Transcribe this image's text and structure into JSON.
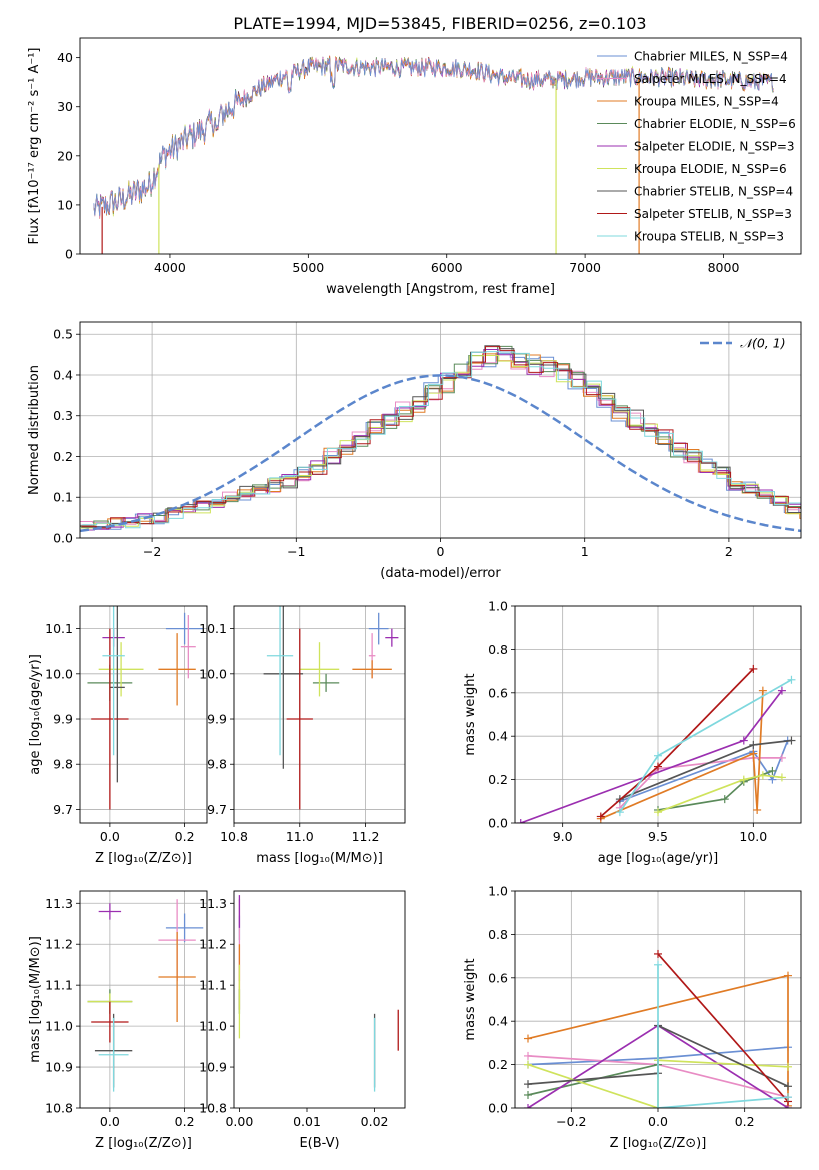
{
  "title": "PLATE=1994, MJD=53845, FIBERID=0256, z=0.103",
  "colors": {
    "Chabrier MILES": "#6a8fd3",
    "Salpeter MILES": "#e88cc4",
    "Kroupa MILES": "#e07b25",
    "Chabrier ELODIE": "#5a8a5a",
    "Salpeter ELODIE": "#9b2fb0",
    "Kroupa ELODIE": "#cfe35c",
    "Chabrier STELIB": "#555555",
    "Salpeter STELIB": "#b01818",
    "Kroupa STELIB": "#7fd8de",
    "normal": "#5b86cc"
  },
  "chart_data": [
    {
      "id": "spectrum",
      "type": "line",
      "xlabel": "wavelength [Angstrom, rest frame]",
      "ylabel": "Flux [fλ10⁻¹⁷ erg cm⁻² s⁻¹ A⁻¹]",
      "xlim": [
        3350,
        8560
      ],
      "ylim": [
        0,
        44
      ],
      "xticks": [
        4000,
        5000,
        6000,
        7000,
        8000
      ],
      "yticks": [
        0,
        10,
        20,
        30,
        40
      ],
      "grid": false,
      "legend_position": "right",
      "legend": [
        {
          "model": "Chabrier MILES",
          "label": "Chabrier MILES, N_SSP=4"
        },
        {
          "model": "Salpeter MILES",
          "label": "Salpeter MILES, N_SSP=4"
        },
        {
          "model": "Kroupa MILES",
          "label": "Kroupa MILES, N_SSP=4"
        },
        {
          "model": "Chabrier ELODIE",
          "label": "Chabrier ELODIE, N_SSP=6"
        },
        {
          "model": "Salpeter ELODIE",
          "label": "Salpeter ELODIE, N_SSP=3"
        },
        {
          "model": "Kroupa ELODIE",
          "label": "Kroupa ELODIE, N_SSP=6"
        },
        {
          "model": "Chabrier STELIB",
          "label": "Chabrier STELIB, N_SSP=4"
        },
        {
          "model": "Salpeter STELIB",
          "label": "Salpeter STELIB, N_SSP=3"
        },
        {
          "model": "Kroupa STELIB",
          "label": "Kroupa STELIB, N_SSP=3"
        }
      ],
      "continuum": {
        "x": [
          3450,
          3650,
          3850,
          3950,
          4050,
          4150,
          4250,
          4400,
          4600,
          4800,
          5000,
          5200,
          5400,
          5600,
          5800,
          6000,
          6200,
          6400,
          6600,
          6800,
          7000,
          7200,
          7400,
          7600,
          7800,
          8000,
          8200,
          8350
        ],
        "y": [
          9,
          11,
          14,
          20,
          22,
          24,
          25.5,
          29,
          33,
          36,
          38,
          38.5,
          38,
          38,
          38,
          38,
          37.5,
          36,
          35.5,
          35.5,
          36,
          36,
          36,
          36,
          35.5,
          35.5,
          35,
          35
        ]
      },
      "dropouts": [
        {
          "x": 3510,
          "y_min": 0,
          "model": "Salpeter STELIB"
        },
        {
          "x": 3920,
          "y_min": 0,
          "model": "Kroupa ELODIE"
        },
        {
          "x": 6790,
          "y_min": 0,
          "model": "Kroupa ELODIE"
        },
        {
          "x": 7390,
          "y_min": 0,
          "model": "Kroupa MILES"
        }
      ]
    },
    {
      "id": "residuals",
      "type": "bar",
      "xlabel": "(data-model)/error",
      "ylabel": "Normed distribution",
      "xlim": [
        -2.5,
        2.5
      ],
      "ylim": [
        0,
        0.53
      ],
      "xticks": [
        -2,
        -1,
        0,
        1,
        2
      ],
      "yticks": [
        0.0,
        0.1,
        0.2,
        0.3,
        0.4,
        0.5
      ],
      "grid": true,
      "legend_position": "top-right",
      "legend": [
        "𝒩(0, 1)"
      ],
      "bin_edges_from": -2.5,
      "bin_width": 0.1,
      "envelope": [
        0.028,
        0.03,
        0.035,
        0.04,
        0.045,
        0.05,
        0.058,
        0.066,
        0.075,
        0.085,
        0.1,
        0.11,
        0.12,
        0.13,
        0.14,
        0.155,
        0.175,
        0.2,
        0.22,
        0.245,
        0.27,
        0.29,
        0.31,
        0.33,
        0.36,
        0.38,
        0.41,
        0.43,
        0.445,
        0.455,
        0.44,
        0.43,
        0.42,
        0.4,
        0.385,
        0.365,
        0.34,
        0.31,
        0.29,
        0.265,
        0.245,
        0.22,
        0.2,
        0.175,
        0.155,
        0.135,
        0.12,
        0.105,
        0.09,
        0.075,
        0.06,
        0.05,
        0.042,
        0.035,
        0.03,
        0.026,
        0.022,
        0.02,
        0.018,
        0.015,
        0.012,
        0.01,
        0.01,
        0.01,
        0.01,
        0.01,
        0.01,
        0.01,
        0.01,
        0.01
      ],
      "spread": 0.035
    },
    {
      "id": "age-vs-Z",
      "type": "scatter",
      "xlabel": "Z [log₁₀(Z/Z⊙)]",
      "ylabel": "age  [log₁₀(age/yr)]",
      "xlim": [
        -0.08,
        0.26
      ],
      "ylim": [
        9.67,
        10.15
      ],
      "xticks": [
        0.0,
        0.2
      ],
      "yticks": [
        9.7,
        9.8,
        9.9,
        10.0,
        10.1
      ],
      "grid": true,
      "points": [
        {
          "model": "Chabrier MILES",
          "x": 0.2,
          "y": 10.1,
          "xerr": 0.05,
          "yerr": 0.035
        },
        {
          "model": "Salpeter MILES",
          "x": 0.21,
          "y": 10.06,
          "xerr": 0.02,
          "yerr": 0.07
        },
        {
          "model": "Kroupa MILES",
          "x": 0.18,
          "y": 10.01,
          "xerr": 0.05,
          "yerr": 0.08
        },
        {
          "model": "Chabrier ELODIE",
          "x": 0.0,
          "y": 9.98,
          "xerr": 0.06,
          "yerr": 0.04
        },
        {
          "model": "Salpeter ELODIE",
          "x": 0.01,
          "y": 10.08,
          "xerr": 0.03,
          "yerr": 0.02
        },
        {
          "model": "Kroupa ELODIE",
          "x": 0.03,
          "y": 10.01,
          "xerr": 0.06,
          "yerr": 0.06
        },
        {
          "model": "Chabrier STELIB",
          "x": 0.02,
          "y": 9.97,
          "xerr": 0.02,
          "yerr": 0.21
        },
        {
          "model": "Salpeter STELIB",
          "x": 0.0,
          "y": 9.9,
          "xerr": 0.05,
          "yerr": 0.2
        },
        {
          "model": "Kroupa STELIB",
          "x": 0.01,
          "y": 10.04,
          "xerr": 0.03,
          "yerr": 0.22
        }
      ]
    },
    {
      "id": "age-vs-mass",
      "type": "scatter",
      "xlabel": "mass [log₁₀(M/M⊙)]",
      "ylabel": "",
      "xlim": [
        10.8,
        11.32
      ],
      "ylim": [
        9.67,
        10.15
      ],
      "xticks": [
        10.8,
        11.0,
        11.2
      ],
      "yticks": [
        9.7,
        9.8,
        9.9,
        10.0,
        10.1
      ],
      "grid": true,
      "points": [
        {
          "model": "Chabrier MILES",
          "x": 11.24,
          "y": 10.1,
          "xerr": 0.03,
          "yerr": 0.035
        },
        {
          "model": "Salpeter MILES",
          "x": 11.22,
          "y": 10.04,
          "xerr": 0.01,
          "yerr": 0.05
        },
        {
          "model": "Kroupa MILES",
          "x": 11.22,
          "y": 10.01,
          "xerr": 0.06,
          "yerr": 0.02
        },
        {
          "model": "Chabrier ELODIE",
          "x": 11.08,
          "y": 9.98,
          "xerr": 0.04,
          "yerr": 0.02
        },
        {
          "model": "Salpeter ELODIE",
          "x": 11.28,
          "y": 10.08,
          "xerr": 0.02,
          "yerr": 0.02
        },
        {
          "model": "Kroupa ELODIE",
          "x": 11.06,
          "y": 10.01,
          "xerr": 0.06,
          "yerr": 0.06
        },
        {
          "model": "Chabrier STELIB",
          "x": 10.95,
          "y": 10.0,
          "xerr": 0.06,
          "yerr": 0.21
        },
        {
          "model": "Salpeter STELIB",
          "x": 11.0,
          "y": 9.9,
          "xerr": 0.04,
          "yerr": 0.2
        },
        {
          "model": "Kroupa STELIB",
          "x": 10.94,
          "y": 10.04,
          "xerr": 0.04,
          "yerr": 0.22
        }
      ]
    },
    {
      "id": "mass-weight-vs-age",
      "type": "line",
      "xlabel": "age  [log₁₀(age/yr)]",
      "ylabel": "mass weight",
      "xlim": [
        8.75,
        10.25
      ],
      "ylim": [
        0,
        1.0
      ],
      "xticks": [
        9.0,
        9.5,
        10.0
      ],
      "yticks": [
        0.0,
        0.2,
        0.4,
        0.6,
        0.8,
        1.0
      ],
      "grid": true,
      "series": [
        {
          "model": "Chabrier MILES",
          "x": [
            9.3,
            10.0,
            10.1,
            10.18
          ],
          "y": [
            0.1,
            0.33,
            0.2,
            0.38
          ]
        },
        {
          "model": "Salpeter MILES",
          "x": [
            9.3,
            9.5,
            10.0,
            10.15
          ],
          "y": [
            0.07,
            0.25,
            0.3,
            0.3
          ]
        },
        {
          "model": "Kroupa MILES",
          "x": [
            9.2,
            10.0,
            10.02,
            10.05
          ],
          "y": [
            0.02,
            0.32,
            0.06,
            0.61
          ]
        },
        {
          "model": "Chabrier ELODIE",
          "x": [
            9.5,
            9.85,
            9.95,
            10.1
          ],
          "y": [
            0.06,
            0.11,
            0.19,
            0.24
          ]
        },
        {
          "model": "Salpeter ELODIE",
          "x": [
            8.78,
            9.95,
            10.15
          ],
          "y": [
            0.0,
            0.38,
            0.61
          ]
        },
        {
          "model": "Kroupa ELODIE",
          "x": [
            9.5,
            9.95,
            10.05,
            10.15
          ],
          "y": [
            0.05,
            0.2,
            0.22,
            0.21
          ]
        },
        {
          "model": "Chabrier STELIB",
          "x": [
            9.3,
            10.0,
            10.2
          ],
          "y": [
            0.11,
            0.36,
            0.38
          ]
        },
        {
          "model": "Salpeter STELIB",
          "x": [
            9.2,
            9.5,
            10.0
          ],
          "y": [
            0.03,
            0.26,
            0.71
          ]
        },
        {
          "model": "Kroupa STELIB",
          "x": [
            9.3,
            9.5,
            10.2
          ],
          "y": [
            0.05,
            0.31,
            0.66
          ]
        }
      ]
    },
    {
      "id": "mass-vs-Z",
      "type": "scatter",
      "xlabel": "Z [log₁₀(Z/Z⊙)]",
      "ylabel": "mass [log₁₀(M/M⊙)]",
      "xlim": [
        -0.08,
        0.26
      ],
      "ylim": [
        10.8,
        11.33
      ],
      "xticks": [
        0.0,
        0.2
      ],
      "yticks": [
        10.8,
        10.9,
        11.0,
        11.1,
        11.2,
        11.3
      ],
      "grid": true,
      "points": [
        {
          "model": "Chabrier MILES",
          "x": 0.2,
          "y": 11.24,
          "xerr": 0.05,
          "yerr": 0.035
        },
        {
          "model": "Salpeter MILES",
          "x": 0.18,
          "y": 11.21,
          "xerr": 0.05,
          "yerr": 0.1
        },
        {
          "model": "Kroupa MILES",
          "x": 0.18,
          "y": 11.12,
          "xerr": 0.05,
          "yerr": 0.11
        },
        {
          "model": "Chabrier ELODIE",
          "x": 0.0,
          "y": 11.06,
          "xerr": 0.06,
          "yerr": 0.03
        },
        {
          "model": "Salpeter ELODIE",
          "x": 0.0,
          "y": 11.28,
          "xerr": 0.03,
          "yerr": 0.02
        },
        {
          "model": "Kroupa ELODIE",
          "x": 0.0,
          "y": 11.06,
          "xerr": 0.06,
          "yerr": 0.02
        },
        {
          "model": "Chabrier STELIB",
          "x": 0.01,
          "y": 10.94,
          "xerr": 0.05,
          "yerr": 0.09
        },
        {
          "model": "Salpeter STELIB",
          "x": 0.0,
          "y": 11.01,
          "xerr": 0.05,
          "yerr": 0.05
        },
        {
          "model": "Kroupa STELIB",
          "x": 0.01,
          "y": 10.93,
          "xerr": 0.04,
          "yerr": 0.09
        }
      ]
    },
    {
      "id": "mass-vs-EBV",
      "type": "scatter",
      "xlabel": "E(B-V)",
      "ylabel": "",
      "xlim": [
        -0.0008,
        0.0245
      ],
      "ylim": [
        10.8,
        11.33
      ],
      "xticks": [
        0.0,
        0.01,
        0.02
      ],
      "yticks": [
        10.8,
        10.9,
        11.0,
        11.1,
        11.2,
        11.3
      ],
      "grid": false,
      "points": [
        {
          "model": "Chabrier MILES",
          "x": 0.0,
          "y": 11.24,
          "xerr": 0,
          "yerr": 0.03
        },
        {
          "model": "Salpeter MILES",
          "x": 0.0,
          "y": 11.21,
          "xerr": 0,
          "yerr": 0.1
        },
        {
          "model": "Kroupa MILES",
          "x": 0.0,
          "y": 11.12,
          "xerr": 0,
          "yerr": 0.08
        },
        {
          "model": "Chabrier ELODIE",
          "x": 0.0,
          "y": 11.06,
          "xerr": 0,
          "yerr": 0.03
        },
        {
          "model": "Salpeter ELODIE",
          "x": 0.0,
          "y": 11.28,
          "xerr": 0,
          "yerr": 0.04
        },
        {
          "model": "Kroupa ELODIE",
          "x": 0.0,
          "y": 11.06,
          "xerr": 0,
          "yerr": 0.09
        },
        {
          "model": "Chabrier STELIB",
          "x": 0.02,
          "y": 10.94,
          "xerr": 0,
          "yerr": 0.09
        },
        {
          "model": "Salpeter STELIB",
          "x": 0.0235,
          "y": 10.99,
          "xerr": 0,
          "yerr": 0.05
        },
        {
          "model": "Kroupa STELIB",
          "x": 0.02,
          "y": 10.93,
          "xerr": 0,
          "yerr": 0.09
        }
      ]
    },
    {
      "id": "mass-weight-vs-Z",
      "type": "line",
      "xlabel": "Z [log₁₀(Z/Z⊙)]",
      "ylabel": "mass weight",
      "xlim": [
        -0.33,
        0.33
      ],
      "ylim": [
        0,
        1.0
      ],
      "xticks": [
        -0.2,
        0.0,
        0.2
      ],
      "yticks": [
        0.0,
        0.2,
        0.4,
        0.6,
        0.8,
        1.0
      ],
      "grid": true,
      "series": [
        {
          "model": "Chabrier MILES",
          "x": [
            -0.3,
            0.0,
            0.3
          ],
          "y": [
            0.2,
            0.23,
            0.28
          ]
        },
        {
          "model": "Salpeter MILES",
          "x": [
            -0.3,
            0.0,
            0.3
          ],
          "y": [
            0.24,
            0.2,
            0.05
          ]
        },
        {
          "model": "Kroupa MILES",
          "x": [
            -0.3,
            0.3,
            0.3
          ],
          "y": [
            0.32,
            0.61,
            0.01
          ]
        },
        {
          "model": "Chabrier ELODIE",
          "x": [
            -0.3,
            0.0
          ],
          "y": [
            0.06,
            0.2
          ]
        },
        {
          "model": "Salpeter ELODIE",
          "x": [
            -0.3,
            0.0,
            0.3
          ],
          "y": [
            0.0,
            0.38,
            0.0
          ]
        },
        {
          "model": "Kroupa ELODIE",
          "x": [
            -0.3,
            0.0,
            0.0,
            0.3
          ],
          "y": [
            0.2,
            0.0,
            0.22,
            0.19
          ]
        },
        {
          "model": "Chabrier STELIB",
          "x": [
            -0.3,
            0.0,
            0.0,
            0.3
          ],
          "y": [
            0.11,
            0.16,
            0.38,
            0.1
          ]
        },
        {
          "model": "Salpeter STELIB",
          "x": [
            0.0,
            0.3
          ],
          "y": [
            0.71,
            0.03
          ]
        },
        {
          "model": "Kroupa STELIB",
          "x": [
            0.0,
            0.0,
            0.3
          ],
          "y": [
            0.66,
            0.0,
            0.05
          ]
        }
      ]
    }
  ]
}
